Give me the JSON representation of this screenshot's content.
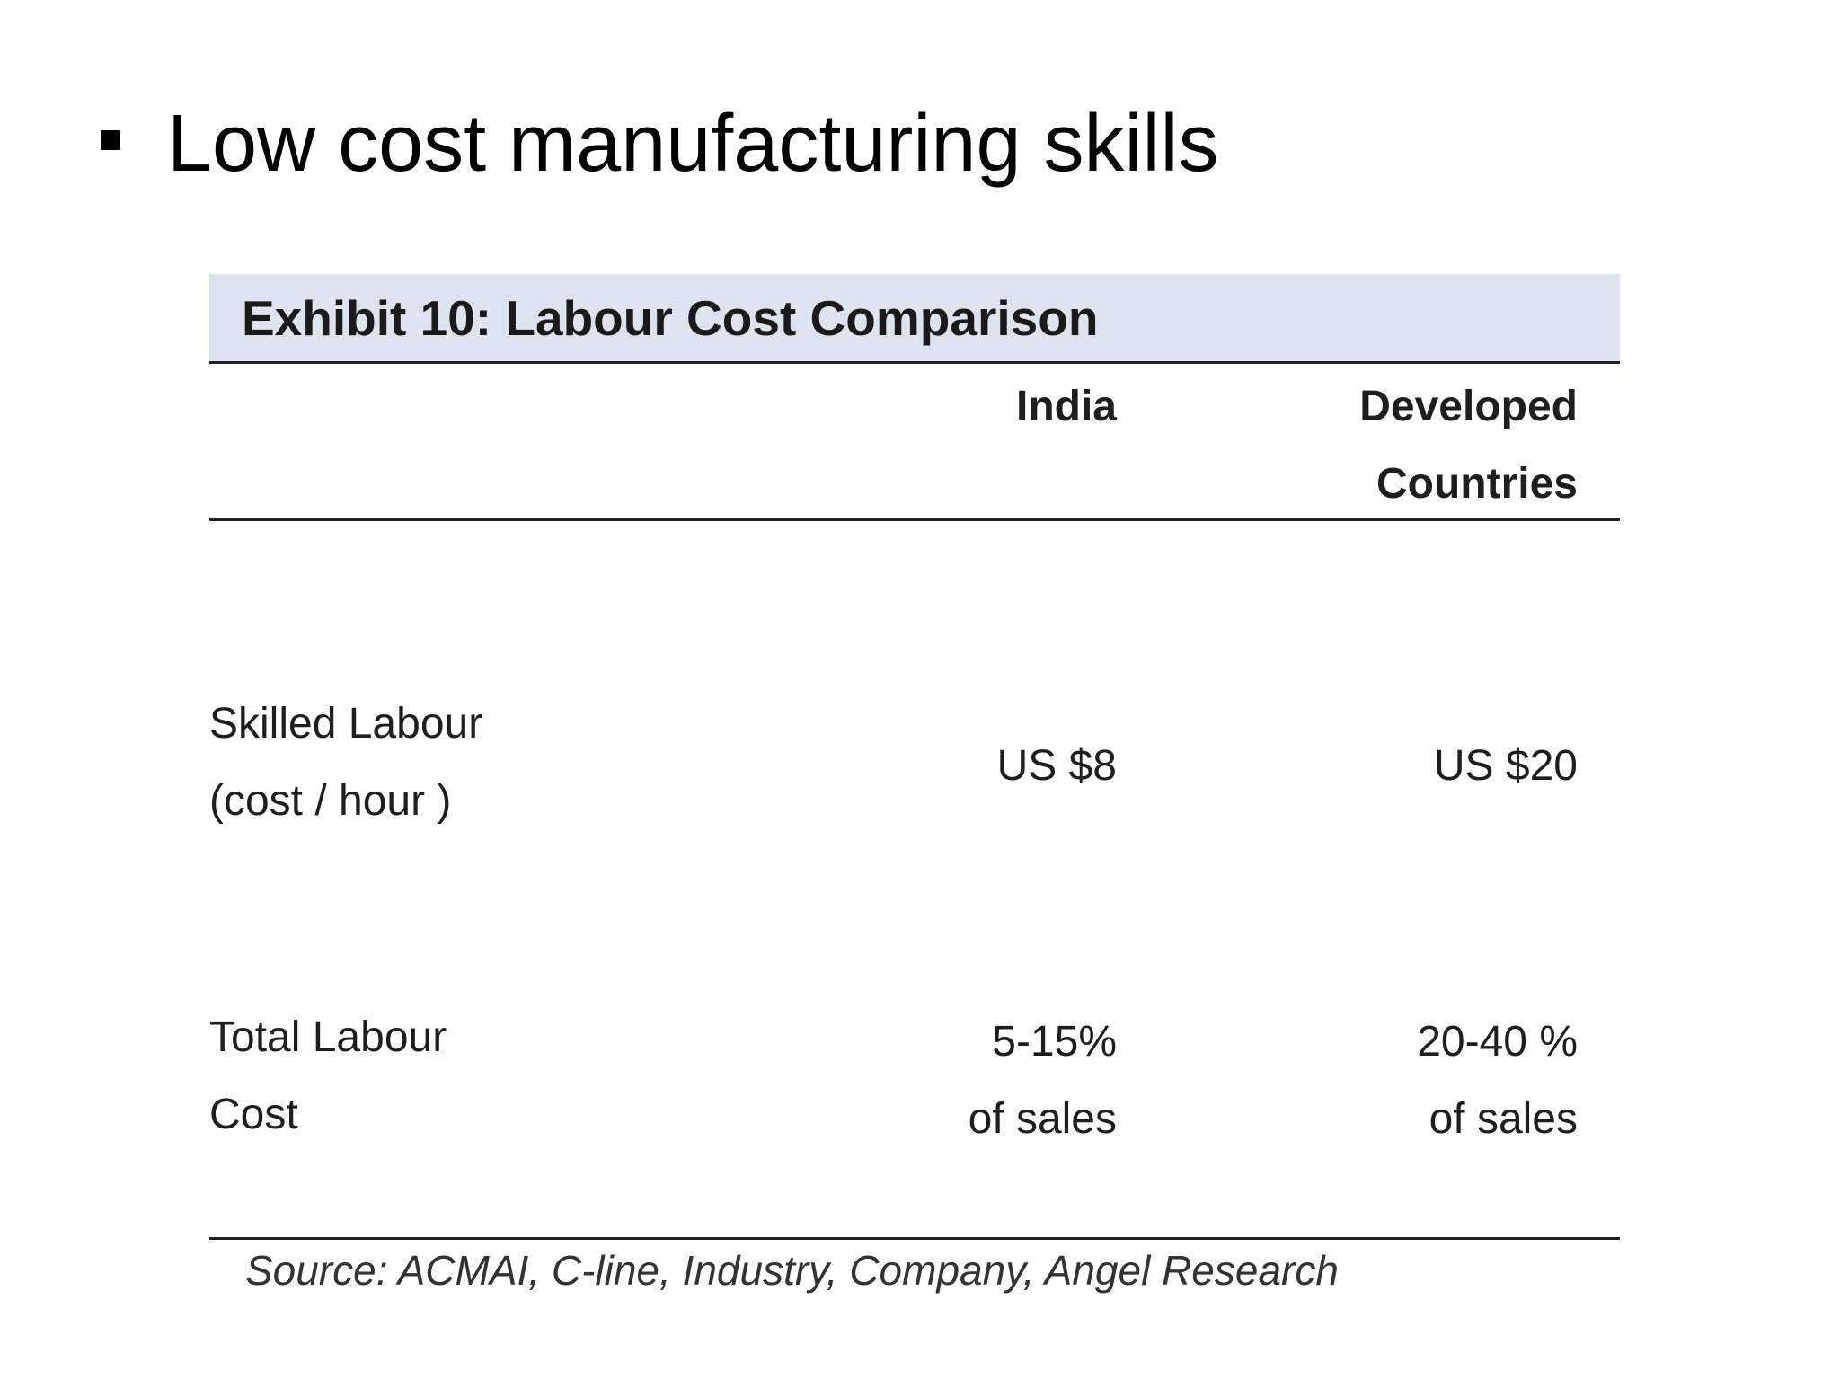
{
  "slide": {
    "bullet_heading": "Low cost manufacturing skills"
  },
  "exhibit": {
    "title": "Exhibit 10: Labour Cost Comparison",
    "columns": [
      {
        "line1": "India",
        "line2": ""
      },
      {
        "line1": "Developed",
        "line2": "Countries"
      }
    ],
    "rows": [
      {
        "label_line1": "Skilled Labour",
        "label_line2": "(cost / hour )",
        "india": {
          "line1": "US $8",
          "line2": ""
        },
        "developed": {
          "line1": "US $20",
          "line2": ""
        }
      },
      {
        "label_line1": "Total Labour",
        "label_line2": "Cost",
        "india": {
          "line1": "5-15%",
          "line2": "of sales"
        },
        "developed": {
          "line1": "20-40 %",
          "line2": "of sales"
        }
      }
    ],
    "source": "Source: ACMAI, C-line, Industry, Company, Angel Research"
  }
}
